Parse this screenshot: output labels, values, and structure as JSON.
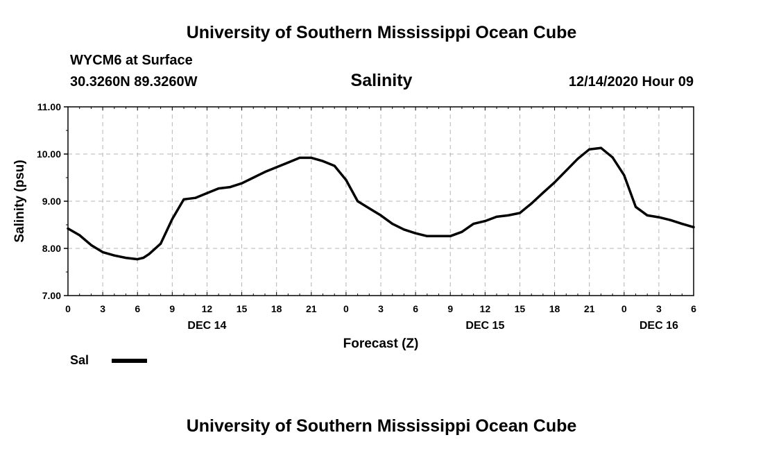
{
  "header": {
    "institution_top": "University of Southern Mississippi Ocean Cube",
    "institution_bottom": "University of Southern Mississippi Ocean Cube",
    "station": "WYCM6 at Surface",
    "coords": "30.3260N 89.3260W",
    "datetime": "12/14/2020 Hour 09"
  },
  "legend": {
    "label": "Sal"
  },
  "colors": {
    "line": "#000000",
    "grid": "#b4b4b4",
    "background": "#ffffff"
  },
  "chart_data": {
    "type": "line",
    "title": "Salinity",
    "xlabel": "Forecast (Z)",
    "ylabel": "Salinity (psu)",
    "x_unit": "forecast hours from DEC 14 00Z",
    "xlim": [
      0,
      54
    ],
    "ylim": [
      7.0,
      11.0
    ],
    "grid": true,
    "y_ticks": [
      7.0,
      8.0,
      9.0,
      10.0,
      11.0
    ],
    "y_tick_labels": [
      "7.00",
      "8.00",
      "9.00",
      "10.00",
      "11.00"
    ],
    "x_ticks": [
      0,
      3,
      6,
      9,
      12,
      15,
      18,
      21,
      24,
      27,
      30,
      33,
      36,
      39,
      42,
      45,
      48,
      51,
      54
    ],
    "x_tick_labels": [
      "0",
      "3",
      "6",
      "9",
      "12",
      "15",
      "18",
      "21",
      "0",
      "3",
      "6",
      "9",
      "12",
      "15",
      "18",
      "21",
      "0",
      "3",
      "6"
    ],
    "day_labels": [
      {
        "x": 12,
        "text": "DEC 14"
      },
      {
        "x": 36,
        "text": "DEC 15"
      },
      {
        "x": 51,
        "text": "DEC 16"
      }
    ],
    "legend_position": "bottom-left",
    "series": [
      {
        "name": "Sal",
        "x": [
          0,
          1,
          2,
          3,
          4,
          5,
          6,
          6.5,
          7,
          8,
          9,
          10,
          11,
          12,
          13,
          14,
          15,
          16,
          17,
          18,
          19,
          20,
          21,
          22,
          23,
          24,
          25,
          26,
          27,
          28,
          29,
          30,
          31,
          32,
          33,
          34,
          35,
          36,
          37,
          38,
          39,
          40,
          41,
          42,
          43,
          44,
          45,
          46,
          47,
          48,
          49,
          50,
          51,
          52,
          53,
          54
        ],
        "y": [
          8.42,
          8.28,
          8.07,
          7.92,
          7.85,
          7.8,
          7.77,
          7.8,
          7.88,
          8.1,
          8.62,
          9.04,
          9.07,
          9.17,
          9.27,
          9.3,
          9.38,
          9.5,
          9.62,
          9.72,
          9.82,
          9.92,
          9.92,
          9.85,
          9.75,
          9.45,
          9.0,
          8.85,
          8.7,
          8.52,
          8.4,
          8.32,
          8.26,
          8.26,
          8.26,
          8.35,
          8.52,
          8.58,
          8.67,
          8.7,
          8.75,
          8.95,
          9.18,
          9.4,
          9.65,
          9.9,
          10.1,
          10.13,
          9.93,
          9.55,
          8.88,
          8.7,
          8.66,
          8.6,
          8.52,
          8.45
        ]
      }
    ]
  }
}
